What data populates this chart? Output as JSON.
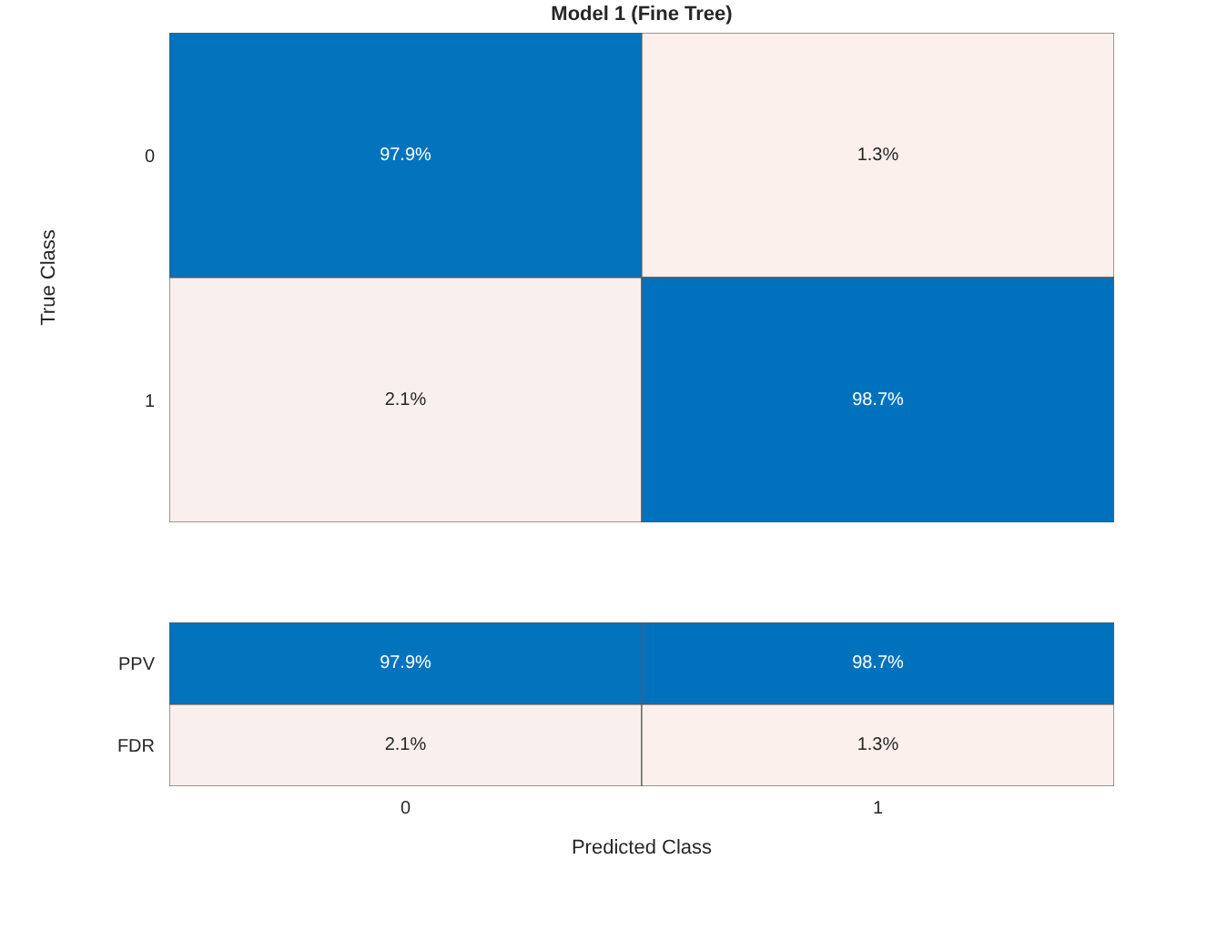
{
  "chart_data": [
    {
      "type": "heatmap",
      "title": "Model 1 (Fine Tree)",
      "ylabel": "True Class",
      "categories": [
        "0",
        "1"
      ],
      "y_categories": [
        "0",
        "1"
      ],
      "cells": [
        [
          97.9,
          1.3
        ],
        [
          2.1,
          98.7
        ]
      ],
      "cell_labels": [
        [
          "97.9%",
          "1.3%"
        ],
        [
          "2.1%",
          "98.7%"
        ]
      ],
      "tick_labels": "y"
    },
    {
      "type": "heatmap",
      "xlabel": "Predicted Class",
      "categories": [
        "0",
        "1"
      ],
      "y_categories": [
        "PPV",
        "FDR"
      ],
      "cells": [
        [
          97.9,
          98.7
        ],
        [
          2.1,
          1.3
        ]
      ],
      "cell_labels": [
        [
          "97.9%",
          "98.7%"
        ],
        [
          "2.1%",
          "1.3%"
        ]
      ]
    }
  ]
}
